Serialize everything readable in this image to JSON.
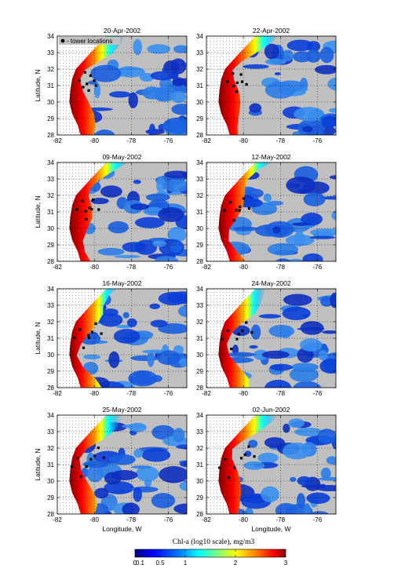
{
  "figure": {
    "panels": [
      {
        "date": "20-Apr-2002",
        "legend": "- tower locations",
        "show_ylabel": true,
        "show_xlabel": false
      },
      {
        "date": "22-Apr-2002",
        "show_ylabel": false,
        "show_xlabel": false
      },
      {
        "date": "09-May-2002",
        "show_ylabel": true,
        "show_xlabel": false
      },
      {
        "date": "12-May-2002",
        "show_ylabel": false,
        "show_xlabel": false
      },
      {
        "date": "16-May-2002",
        "show_ylabel": true,
        "show_xlabel": false
      },
      {
        "date": "24-May-2002",
        "show_ylabel": false,
        "show_xlabel": false
      },
      {
        "date": "25-May-2002",
        "show_ylabel": true,
        "show_xlabel": true
      },
      {
        "date": "02-Jun-2002",
        "show_ylabel": false,
        "show_xlabel": true
      }
    ],
    "axes": {
      "xlabel": "Longitude, W",
      "ylabel": "Latitude, N",
      "xticks": [
        "-82",
        "-80",
        "-78",
        "-76"
      ],
      "yticks": [
        "34",
        "33",
        "32",
        "31",
        "30",
        "29",
        "28"
      ],
      "xlim": [
        -82,
        -75
      ],
      "ylim": [
        28,
        34
      ],
      "grid": "dotted"
    },
    "colorbar": {
      "title": "Chl-a (log10 scale), mg/m3",
      "ticks": [
        "0",
        "0.1",
        "0.5",
        "1",
        "2",
        "3"
      ],
      "colors": [
        "#00008f",
        "#0000ff",
        "#0080ff",
        "#00ffff",
        "#80ff80",
        "#ffff00",
        "#ff8000",
        "#ff0000",
        "#800000"
      ]
    },
    "colors": {
      "land": "#ffffff",
      "no_data": "#c0c0c0",
      "offshore": "#1a5fe0",
      "tower_marker": "#000000"
    }
  }
}
